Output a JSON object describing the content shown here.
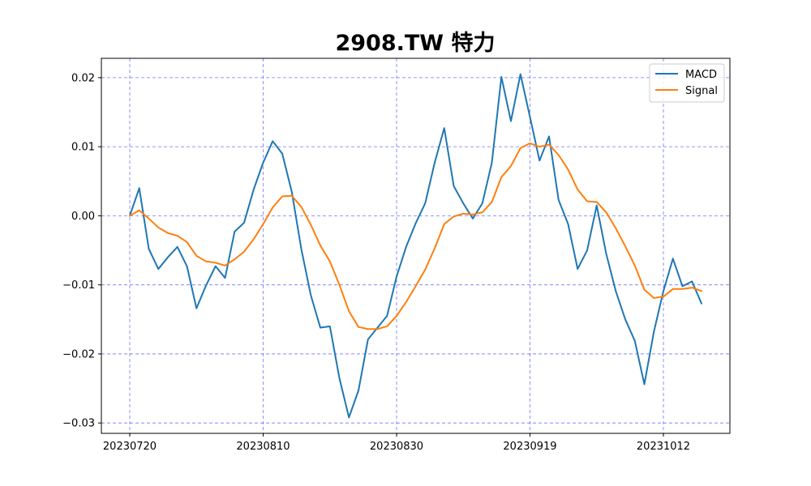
{
  "chart_data": {
    "type": "line",
    "title": "2908.TW 特力",
    "xlabel": "",
    "ylabel": "",
    "x_tick_labels": [
      "20230720",
      "20230810",
      "20230830",
      "20230919",
      "20231012"
    ],
    "y_tick_labels": [
      "−0.03",
      "−0.02",
      "−0.01",
      "0.00",
      "0.01",
      "0.02"
    ],
    "y_ticks": [
      -0.03,
      -0.02,
      -0.01,
      0.0,
      0.01,
      0.02
    ],
    "ylim": [
      -0.0315,
      0.0228
    ],
    "grid": true,
    "legend_position": "top-right",
    "series": [
      {
        "name": "MACD",
        "color": "#1f77b4",
        "values": [
          0.0,
          0.004,
          -0.0048,
          -0.0077,
          -0.006,
          -0.0045,
          -0.0073,
          -0.0134,
          -0.0101,
          -0.0073,
          -0.009,
          -0.0023,
          -0.001,
          0.0038,
          0.0077,
          0.0108,
          0.009,
          0.0035,
          -0.0048,
          -0.0115,
          -0.0162,
          -0.016,
          -0.0235,
          -0.0292,
          -0.0253,
          -0.0179,
          -0.0162,
          -0.0145,
          -0.0088,
          -0.0045,
          -0.0011,
          0.0018,
          0.0077,
          0.0127,
          0.0043,
          0.0018,
          -0.0004,
          0.0018,
          0.0077,
          0.0201,
          0.0137,
          0.0205,
          0.0143,
          0.008,
          0.0115,
          0.0023,
          -0.0012,
          -0.0077,
          -0.005,
          0.0015,
          -0.0055,
          -0.0109,
          -0.015,
          -0.0181,
          -0.0244,
          -0.0168,
          -0.0109,
          -0.0062,
          -0.0102,
          -0.0095,
          -0.0127
        ]
      },
      {
        "name": "Signal",
        "color": "#ff7f0e",
        "values": [
          0.0,
          0.0008,
          -0.0004,
          -0.0017,
          -0.0025,
          -0.0029,
          -0.0038,
          -0.0058,
          -0.0066,
          -0.0068,
          -0.0072,
          -0.0063,
          -0.0052,
          -0.0034,
          -0.0012,
          0.0012,
          0.0028,
          0.0029,
          0.0013,
          -0.0013,
          -0.0043,
          -0.0066,
          -0.01,
          -0.0138,
          -0.0161,
          -0.0164,
          -0.0164,
          -0.016,
          -0.0145,
          -0.0125,
          -0.0102,
          -0.0078,
          -0.0047,
          -0.0012,
          -0.0001,
          0.0003,
          0.0002,
          0.0005,
          0.002,
          0.0056,
          0.0072,
          0.0098,
          0.0105,
          0.01,
          0.0103,
          0.0088,
          0.0067,
          0.0038,
          0.0021,
          0.002,
          0.0005,
          -0.0018,
          -0.0044,
          -0.0072,
          -0.0107,
          -0.0119,
          -0.0117,
          -0.0106,
          -0.0106,
          -0.0104,
          -0.0109
        ]
      }
    ]
  }
}
